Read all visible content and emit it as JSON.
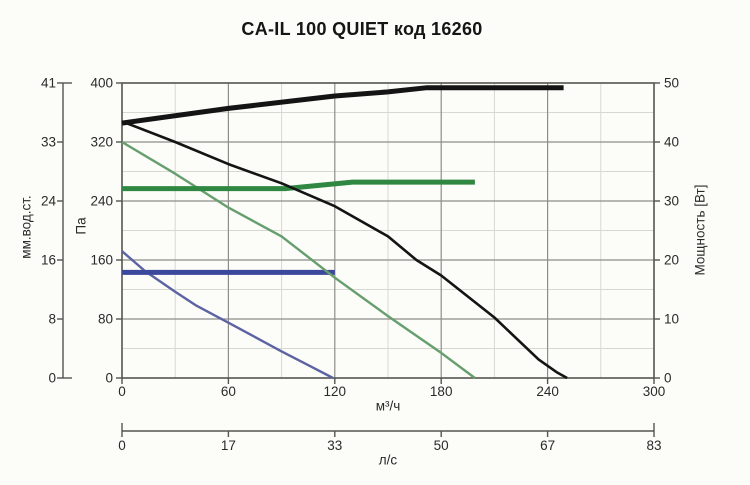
{
  "title": "CA-IL 100 QUIET код 16260",
  "axes": {
    "pressure_pa": {
      "title": "Па",
      "ticks": [
        "400",
        "320",
        "240",
        "160",
        "80",
        "0"
      ]
    },
    "pressure_mm": {
      "title": "мм.вод.ст.",
      "ticks": [
        "41",
        "33",
        "24",
        "16",
        "8",
        "0"
      ]
    },
    "power_w": {
      "title": "Мощность [Вт]",
      "ticks": [
        "50",
        "40",
        "30",
        "20",
        "10",
        "0"
      ]
    },
    "flow_m3h": {
      "title": "м³/ч",
      "ticks": [
        "0",
        "60",
        "120",
        "180",
        "240",
        "300"
      ]
    },
    "flow_ls": {
      "title": "л/с",
      "ticks": [
        "0",
        "17",
        "33",
        "50",
        "67",
        "83"
      ]
    }
  },
  "colors": {
    "black_curve": "#141414",
    "green_thin": "#669e6e",
    "green_thick": "#2f8742",
    "blue_thin": "#5c63a2",
    "blue_thick": "#3c489c",
    "grid_major": "#8c8c88",
    "grid_minor": "#d8d8d2",
    "frame": "#56544f"
  },
  "chart_data": {
    "type": "line",
    "title": "CA-IL 100 QUIET код 16260",
    "x": {
      "label": "м³/ч",
      "min": 0,
      "max": 300,
      "ticks": [
        0,
        60,
        120,
        180,
        240,
        300
      ],
      "minor_step": 30,
      "secondary": {
        "label": "л/с",
        "ticks": [
          0,
          17,
          33,
          50,
          67,
          83
        ]
      }
    },
    "y_left": {
      "label": "Па",
      "min": 0,
      "max": 400,
      "ticks": [
        400,
        320,
        240,
        160,
        80,
        0
      ],
      "minor_step": 40,
      "secondary": {
        "label": "мм.вод.ст.",
        "ticks": [
          41,
          33,
          24,
          16,
          8,
          0
        ]
      }
    },
    "y_right": {
      "label": "Мощность [Вт]",
      "min": 0,
      "max": 50,
      "ticks": [
        50,
        40,
        30,
        20,
        10,
        0
      ]
    },
    "grid": "major+minor",
    "legend": "none",
    "series": [
      {
        "name": "pressure-speed-1",
        "unit": "Па",
        "axis": "pa",
        "color": "#5c63a2",
        "width": 2.4,
        "points": [
          [
            0,
            172
          ],
          [
            13,
            145
          ],
          [
            30,
            117
          ],
          [
            42,
            98
          ],
          [
            60,
            75
          ],
          [
            90,
            36
          ],
          [
            107,
            15
          ],
          [
            119,
            0
          ]
        ]
      },
      {
        "name": "power-speed-1",
        "unit": "Вт",
        "axis": "w",
        "color": "#3c489c",
        "width": 5,
        "points": [
          [
            0,
            17.9
          ],
          [
            120,
            17.9
          ]
        ]
      },
      {
        "name": "pressure-speed-2",
        "unit": "Па",
        "axis": "pa",
        "color": "#669e6e",
        "width": 2.4,
        "points": [
          [
            0,
            320
          ],
          [
            30,
            277
          ],
          [
            60,
            231
          ],
          [
            90,
            192
          ],
          [
            120,
            136
          ],
          [
            150,
            84
          ],
          [
            180,
            34
          ],
          [
            199,
            0
          ]
        ]
      },
      {
        "name": "power-speed-2",
        "unit": "Вт",
        "axis": "w",
        "color": "#2f8742",
        "width": 5,
        "points": [
          [
            0,
            32.1
          ],
          [
            92,
            32.1
          ],
          [
            130,
            33.2
          ],
          [
            199,
            33.2
          ]
        ]
      },
      {
        "name": "pressure-speed-3",
        "unit": "Па",
        "axis": "pa",
        "color": "#141414",
        "width": 2.6,
        "points": [
          [
            0,
            348
          ],
          [
            30,
            320
          ],
          [
            60,
            290
          ],
          [
            90,
            264
          ],
          [
            120,
            233
          ],
          [
            150,
            192
          ],
          [
            166,
            160
          ],
          [
            180,
            139
          ],
          [
            210,
            82
          ],
          [
            235,
            25
          ],
          [
            245,
            8
          ],
          [
            251,
            0
          ]
        ]
      },
      {
        "name": "power-speed-3",
        "unit": "Вт",
        "axis": "w",
        "color": "#141414",
        "width": 5,
        "points": [
          [
            0,
            43.2
          ],
          [
            60,
            45.7
          ],
          [
            120,
            47.8
          ],
          [
            150,
            48.5
          ],
          [
            172,
            49.2
          ],
          [
            249,
            49.2
          ]
        ]
      }
    ]
  }
}
